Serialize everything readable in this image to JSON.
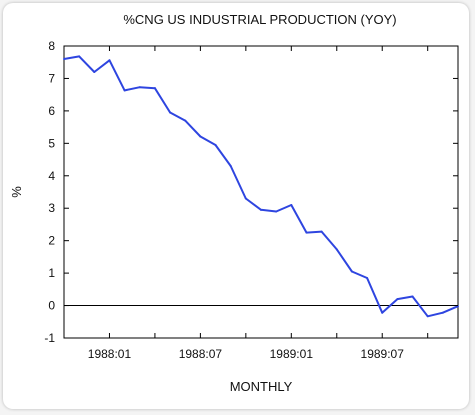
{
  "chart_data": {
    "type": "line",
    "title": "%CNG US INDUSTRIAL PRODUCTION (YOY)",
    "xlabel": "MONTHLY",
    "ylabel": "%",
    "ylim": [
      -1,
      8
    ],
    "yticks": [
      -1,
      0,
      1,
      2,
      3,
      4,
      5,
      6,
      7,
      8
    ],
    "xlim": [
      "1987:10",
      "1989:12"
    ],
    "xtick_labels": [
      "1988:01",
      "1988:07",
      "1989:01",
      "1989:07"
    ],
    "zero_line": true,
    "grid": false,
    "line_color": "#2e45e0",
    "series": [
      {
        "x": [
          "1987:10",
          "1987:11",
          "1987:12",
          "1988:01",
          "1988:02",
          "1988:03",
          "1988:04",
          "1988:05",
          "1988:06",
          "1988:07",
          "1988:08",
          "1988:09",
          "1988:10",
          "1988:11",
          "1988:12",
          "1989:01",
          "1989:02",
          "1989:03",
          "1989:04",
          "1989:05",
          "1989:06",
          "1989:07",
          "1989:08",
          "1989:09",
          "1989:10",
          "1989:11",
          "1989:12"
        ],
        "values": [
          7.6,
          7.68,
          7.2,
          7.56,
          6.63,
          6.73,
          6.7,
          5.95,
          5.7,
          5.21,
          4.95,
          4.3,
          3.3,
          2.95,
          2.9,
          3.1,
          2.25,
          2.28,
          1.73,
          1.05,
          0.85,
          -0.22,
          0.2,
          0.28,
          -0.33,
          -0.22,
          -0.02
        ]
      }
    ]
  }
}
